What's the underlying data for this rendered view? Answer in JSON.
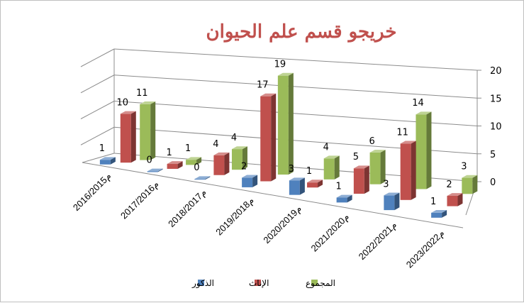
{
  "chart_data": {
    "type": "bar",
    "title": "خريجو قسم علم الحيوان",
    "categories": [
      "2016/2015م",
      "2017/2016م",
      "2018/2017م",
      "2019/2018م",
      "2020/2019م",
      "2021/2020م",
      "2022/2021م",
      "2023/2022م"
    ],
    "series": [
      {
        "name": "الذكور",
        "color": "#4f81bd",
        "values": [
          1,
          0,
          0,
          2,
          3,
          1,
          3,
          1
        ]
      },
      {
        "name": "الإناث",
        "color": "#c0504d",
        "values": [
          10,
          1,
          4,
          17,
          1,
          5,
          11,
          2
        ]
      },
      {
        "name": "المجموع",
        "color": "#9bbb59",
        "values": [
          11,
          1,
          4,
          19,
          4,
          6,
          14,
          3
        ]
      }
    ],
    "ylim": [
      0,
      20
    ],
    "yticks": [
      0,
      5,
      10,
      15,
      20
    ],
    "grid": true,
    "legend": "bottom"
  }
}
